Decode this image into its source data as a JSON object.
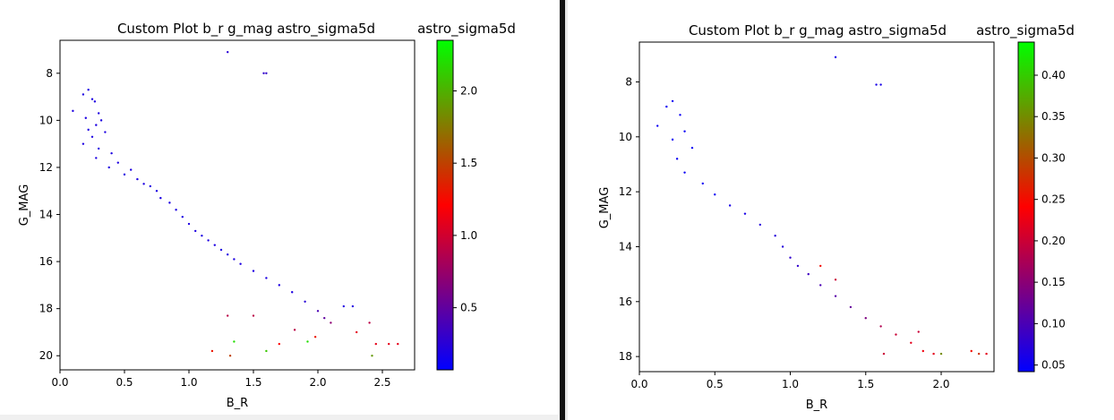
{
  "charts_meta": {
    "left_title": "Custom Plot b_r g_mag astro_sigma5d",
    "right_title": "Custom Plot b_r g_mag astro_sigma5d"
  },
  "chart_data": [
    {
      "type": "scatter",
      "title": "Custom Plot b_r g_mag astro_sigma5d",
      "xlabel": "B_R",
      "ylabel": "G_MAG",
      "colorbar_label": "astro_sigma5d",
      "xlim": [
        0.0,
        2.75
      ],
      "ylim": [
        20.6,
        6.6
      ],
      "y_inverted": true,
      "xticks": [
        "0.0",
        "0.5",
        "1.0",
        "1.5",
        "2.0",
        "2.5"
      ],
      "yticks": [
        "8",
        "10",
        "12",
        "14",
        "16",
        "18",
        "20"
      ],
      "colorbar_range": [
        0.07,
        2.35
      ],
      "colorbar_ticks": [
        "0.5",
        "1.0",
        "1.5",
        "2.0"
      ],
      "colormap": [
        "#0000ff",
        "#ff0000",
        "#00ff00"
      ],
      "grid": false,
      "series": [
        {
          "description_of_values": "b_r, g_mag, astro_sigma5d",
          "points": [
            [
              1.3,
              7.1,
              0.25
            ],
            [
              1.58,
              8.0,
              0.3
            ],
            [
              1.6,
              8.0,
              0.3
            ],
            [
              0.22,
              8.7,
              0.2
            ],
            [
              0.18,
              8.9,
              0.2
            ],
            [
              0.25,
              9.1,
              0.2
            ],
            [
              0.27,
              9.2,
              0.2
            ],
            [
              0.1,
              9.6,
              0.2
            ],
            [
              0.3,
              9.7,
              0.2
            ],
            [
              0.2,
              9.9,
              0.2
            ],
            [
              0.32,
              10.0,
              0.2
            ],
            [
              0.28,
              10.2,
              0.2
            ],
            [
              0.22,
              10.4,
              0.2
            ],
            [
              0.35,
              10.5,
              0.2
            ],
            [
              0.25,
              10.7,
              0.2
            ],
            [
              0.18,
              11.0,
              0.2
            ],
            [
              0.3,
              11.2,
              0.2
            ],
            [
              0.4,
              11.4,
              0.2
            ],
            [
              0.28,
              11.6,
              0.2
            ],
            [
              0.45,
              11.8,
              0.2
            ],
            [
              0.38,
              12.0,
              0.2
            ],
            [
              0.55,
              12.1,
              0.2
            ],
            [
              0.5,
              12.3,
              0.2
            ],
            [
              0.6,
              12.5,
              0.2
            ],
            [
              0.65,
              12.7,
              0.2
            ],
            [
              0.7,
              12.8,
              0.2
            ],
            [
              0.75,
              13.0,
              0.2
            ],
            [
              0.78,
              13.3,
              0.2
            ],
            [
              0.85,
              13.5,
              0.2
            ],
            [
              0.9,
              13.8,
              0.2
            ],
            [
              0.95,
              14.1,
              0.2
            ],
            [
              1.0,
              14.4,
              0.2
            ],
            [
              1.05,
              14.7,
              0.2
            ],
            [
              1.1,
              14.9,
              0.2
            ],
            [
              1.15,
              15.1,
              0.2
            ],
            [
              1.2,
              15.3,
              0.2
            ],
            [
              1.25,
              15.5,
              0.2
            ],
            [
              1.3,
              15.7,
              0.2
            ],
            [
              1.35,
              15.9,
              0.2
            ],
            [
              1.4,
              16.1,
              0.2
            ],
            [
              1.5,
              16.4,
              0.2
            ],
            [
              1.6,
              16.7,
              0.2
            ],
            [
              1.7,
              17.0,
              0.2
            ],
            [
              1.8,
              17.3,
              0.2
            ],
            [
              1.9,
              17.7,
              0.25
            ],
            [
              2.0,
              18.1,
              0.4
            ],
            [
              2.05,
              18.4,
              0.5
            ],
            [
              2.2,
              17.9,
              0.2
            ],
            [
              2.27,
              17.9,
              0.2
            ],
            [
              2.1,
              18.6,
              0.7
            ],
            [
              1.3,
              18.3,
              0.9
            ],
            [
              1.5,
              18.3,
              0.9
            ],
            [
              1.82,
              18.9,
              0.9
            ],
            [
              1.98,
              19.2,
              1.3
            ],
            [
              2.3,
              19.0,
              1.1
            ],
            [
              2.4,
              18.6,
              0.9
            ],
            [
              2.45,
              19.5,
              1.1
            ],
            [
              2.55,
              19.5,
              1.1
            ],
            [
              2.62,
              19.5,
              1.1
            ],
            [
              1.18,
              19.8,
              1.3
            ],
            [
              1.32,
              20.0,
              1.5
            ],
            [
              1.6,
              19.8,
              2.1
            ],
            [
              1.35,
              19.4,
              2.2
            ],
            [
              1.92,
              19.4,
              2.2
            ],
            [
              2.42,
              20.0,
              1.9
            ],
            [
              1.7,
              19.5,
              1.2
            ]
          ]
        }
      ]
    },
    {
      "type": "scatter",
      "title": "Custom Plot b_r g_mag astro_sigma5d",
      "xlabel": "B_R",
      "ylabel": "G_MAG",
      "colorbar_label": "astro_sigma5d",
      "xlim": [
        0.0,
        2.35
      ],
      "ylim": [
        18.55,
        6.55
      ],
      "y_inverted": true,
      "xticks": [
        "0.0",
        "0.5",
        "1.0",
        "1.5",
        "2.0"
      ],
      "yticks": [
        "8",
        "10",
        "12",
        "14",
        "16",
        "18"
      ],
      "colorbar_range": [
        0.042,
        0.44
      ],
      "colorbar_ticks": [
        "0.05",
        "0.10",
        "0.15",
        "0.20",
        "0.25",
        "0.30",
        "0.35",
        "0.40"
      ],
      "colormap": [
        "#0000ff",
        "#ff0000",
        "#00ff00"
      ],
      "grid": false,
      "series": [
        {
          "description_of_values": "b_r, g_mag, astro_sigma5d",
          "points": [
            [
              1.3,
              7.1,
              0.06
            ],
            [
              1.57,
              8.1,
              0.06
            ],
            [
              1.6,
              8.1,
              0.06
            ],
            [
              0.22,
              8.7,
              0.05
            ],
            [
              0.18,
              8.9,
              0.05
            ],
            [
              0.27,
              9.2,
              0.05
            ],
            [
              0.12,
              9.6,
              0.05
            ],
            [
              0.3,
              9.8,
              0.05
            ],
            [
              0.22,
              10.1,
              0.05
            ],
            [
              0.35,
              10.4,
              0.05
            ],
            [
              0.25,
              10.8,
              0.05
            ],
            [
              0.3,
              11.3,
              0.05
            ],
            [
              0.42,
              11.7,
              0.05
            ],
            [
              0.5,
              12.1,
              0.05
            ],
            [
              0.6,
              12.5,
              0.06
            ],
            [
              0.7,
              12.8,
              0.06
            ],
            [
              0.8,
              13.2,
              0.07
            ],
            [
              0.9,
              13.6,
              0.07
            ],
            [
              0.95,
              14.0,
              0.07
            ],
            [
              1.0,
              14.4,
              0.08
            ],
            [
              1.05,
              14.7,
              0.08
            ],
            [
              1.12,
              15.0,
              0.09
            ],
            [
              1.2,
              15.4,
              0.1
            ],
            [
              1.3,
              15.8,
              0.11
            ],
            [
              1.4,
              16.2,
              0.12
            ],
            [
              1.5,
              16.6,
              0.14
            ],
            [
              1.6,
              16.9,
              0.18
            ],
            [
              1.7,
              17.2,
              0.2
            ],
            [
              1.8,
              17.5,
              0.22
            ],
            [
              1.88,
              17.8,
              0.23
            ],
            [
              1.95,
              17.9,
              0.22
            ],
            [
              2.0,
              17.9,
              0.35
            ],
            [
              2.2,
              17.8,
              0.25
            ],
            [
              2.25,
              17.9,
              0.28
            ],
            [
              2.3,
              17.9,
              0.22
            ],
            [
              1.62,
              17.9,
              0.2
            ],
            [
              1.85,
              17.1,
              0.2
            ],
            [
              1.2,
              14.7,
              0.25
            ],
            [
              1.3,
              15.2,
              0.2
            ]
          ]
        }
      ]
    }
  ]
}
